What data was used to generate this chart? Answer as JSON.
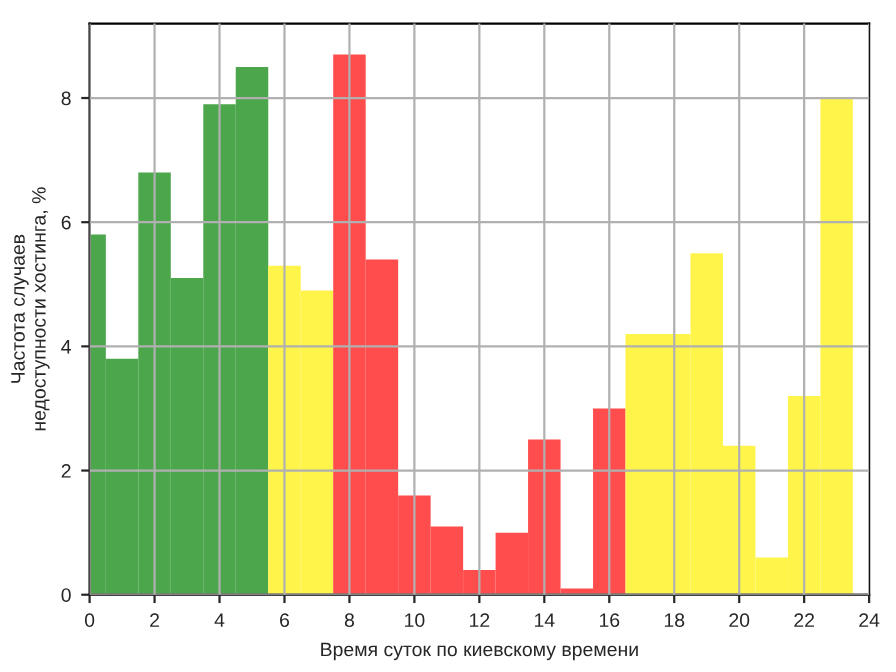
{
  "chart_data": {
    "type": "histogram",
    "xlabel": "Время суток по киевскому времени",
    "ylabel": "Частота случаев\nнедоступности хостинга, %",
    "bins": [
      -0.5,
      0.5,
      1.5,
      2.5,
      3.5,
      4.5,
      5.5,
      6.5,
      7.5,
      8.5,
      9.5,
      10.5,
      11.5,
      12.5,
      13.5,
      14.5,
      15.5,
      16.5,
      17.5,
      18.5,
      19.5,
      20.5,
      21.5,
      22.5,
      23.5
    ],
    "values": [
      5.8,
      3.8,
      6.8,
      5.1,
      7.9,
      8.5,
      5.3,
      4.9,
      8.7,
      5.4,
      1.6,
      1.1,
      0.4,
      1.0,
      2.5,
      0.1,
      3.0,
      4.2,
      4.2,
      5.5,
      2.4,
      0.6,
      3.2,
      8.0
    ],
    "colors": [
      "#4ca64c",
      "#4ca64c",
      "#4ca64c",
      "#4ca64c",
      "#4ca64c",
      "#4ca64c",
      "#fff44a",
      "#fff44a",
      "#ff4c4c",
      "#ff4c4c",
      "#ff4c4c",
      "#ff4c4c",
      "#ff4c4c",
      "#ff4c4c",
      "#ff4c4c",
      "#ff4c4c",
      "#ff4c4c",
      "#fff44a",
      "#fff44a",
      "#fff44a",
      "#fff44a",
      "#fff44a",
      "#fff44a",
      "#fff44a"
    ],
    "xlim": [
      0,
      24
    ],
    "xticks": [
      0,
      2,
      4,
      6,
      8,
      10,
      12,
      14,
      16,
      18,
      20,
      22,
      24
    ],
    "ylim": [
      0,
      9.2
    ],
    "yticks": [
      0,
      2,
      4,
      6,
      8
    ],
    "grid": true
  }
}
